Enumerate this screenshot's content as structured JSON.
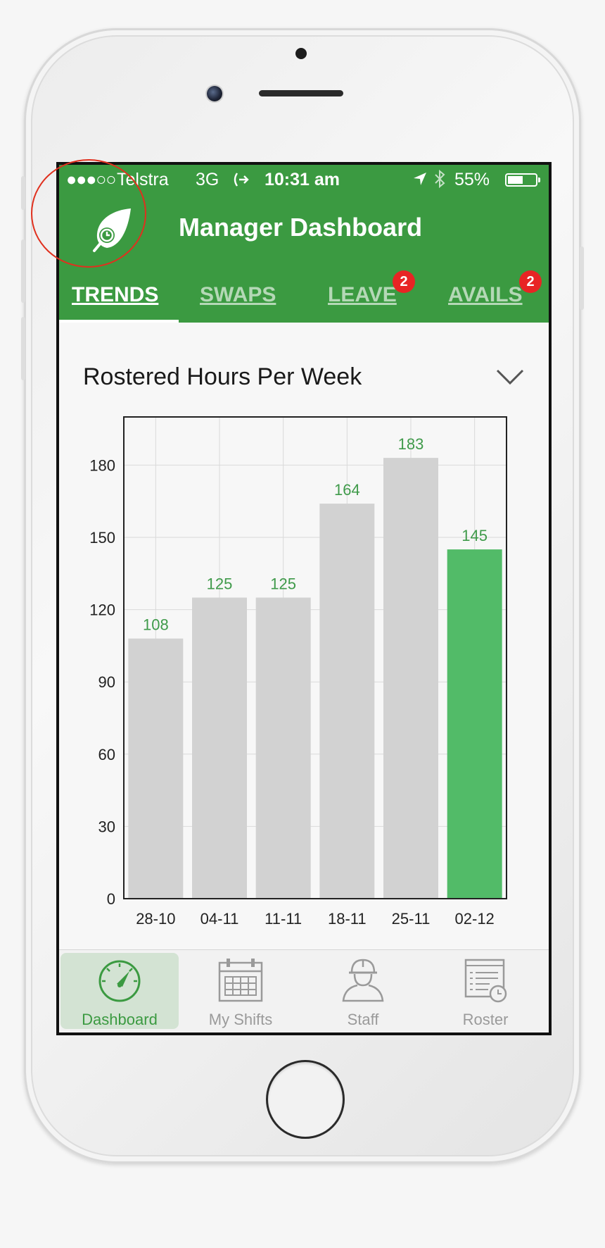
{
  "status_bar": {
    "signal": "●●●○○",
    "carrier": "Telstra",
    "network": "3G",
    "call_icon": "call-forward-icon",
    "time": "10:31 am",
    "location_icon": "location-arrow-icon",
    "bluetooth_icon": "bluetooth-icon",
    "battery": "55%",
    "battery_level": 0.55
  },
  "header": {
    "logo_icon": "leaf-clock-icon",
    "title": "Manager Dashboard"
  },
  "tabs": [
    {
      "label": "TRENDS",
      "active": true,
      "badge": ""
    },
    {
      "label": "SWAPS",
      "active": false,
      "badge": ""
    },
    {
      "label": "LEAVE",
      "active": false,
      "badge": "2"
    },
    {
      "label": "AVAILS",
      "active": false,
      "badge": "2"
    }
  ],
  "section": {
    "title": "Rostered Hours Per Week",
    "dropdown_icon": "chevron-down-icon"
  },
  "chart_data": {
    "type": "bar",
    "title": "",
    "xlabel": "",
    "ylabel": "",
    "categories": [
      "28-10",
      "04-11",
      "11-11",
      "18-11",
      "25-11",
      "02-12"
    ],
    "values": [
      108,
      125,
      125,
      164,
      183,
      145
    ],
    "data_labels": [
      "108",
      "125",
      "125",
      "164",
      "183",
      "145"
    ],
    "ylim": [
      0,
      200
    ],
    "yticks": [
      0,
      30,
      60,
      90,
      120,
      150,
      180
    ],
    "grid": true,
    "highlighted_index": 5,
    "colors": {
      "bar": "#d2d2d2",
      "highlight": "#52bb68",
      "label": "#3f9a4a"
    }
  },
  "bottom_nav": [
    {
      "label": "Dashboard",
      "icon": "speedometer-icon",
      "active": true
    },
    {
      "label": "My Shifts",
      "icon": "calendar-icon",
      "active": false
    },
    {
      "label": "Staff",
      "icon": "hardhat-worker-icon",
      "active": false
    },
    {
      "label": "Roster",
      "icon": "roster-clock-icon",
      "active": false
    }
  ],
  "colors": {
    "header": "#3b9a41",
    "badge": "#e82424",
    "annotation_circle": "#e0301e"
  }
}
